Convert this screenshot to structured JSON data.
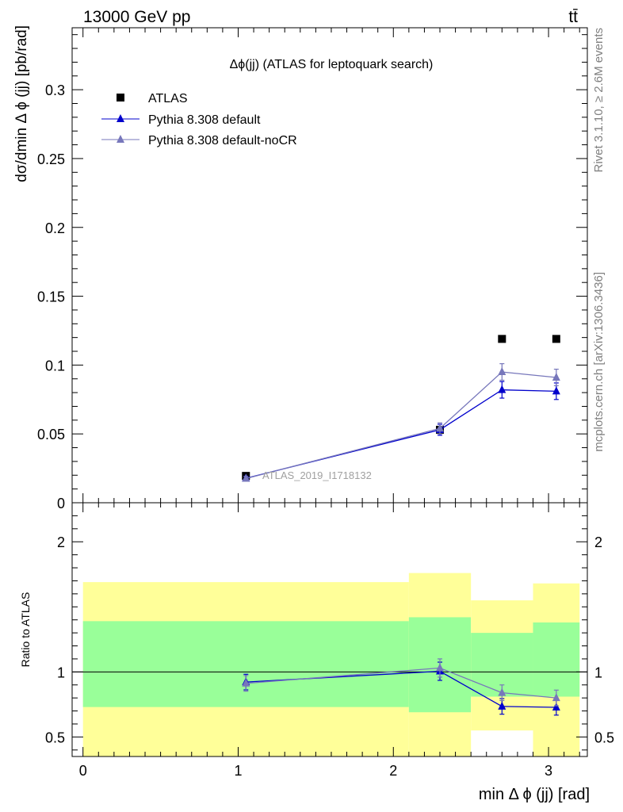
{
  "header": {
    "left": "13000 GeV pp",
    "right": "tt̄"
  },
  "side_labels": {
    "rivet": "Rivet 3.1.10, ≥ 2.6M events",
    "mcplots": "mcplots.cern.ch [arXiv:1306.3436]"
  },
  "chart_data": [
    {
      "type": "line",
      "title": "Δϕ(jj) (ATLAS for leptoquark search)",
      "xlabel": "min Δ ϕ (jj) [rad]",
      "ylabel": "dσ/dmin Δ ϕ (jj) [pb/rad]",
      "xlim": [
        -0.07,
        3.25
      ],
      "ylim": [
        0,
        0.345
      ],
      "y_ticks": [
        {
          "v": 0,
          "label": "0"
        },
        {
          "v": 0.05,
          "label": "0.05"
        },
        {
          "v": 0.1,
          "label": "0.1"
        },
        {
          "v": 0.15,
          "label": "0.15"
        },
        {
          "v": 0.2,
          "label": "0.2"
        },
        {
          "v": 0.25,
          "label": "0.25"
        },
        {
          "v": 0.3,
          "label": "0.3"
        }
      ],
      "watermark": "ATLAS_2019_I1718132",
      "legend_position": "top-left",
      "series": [
        {
          "name": "ATLAS",
          "color": "#000000",
          "marker": "square",
          "x": [
            1.05,
            2.3,
            2.7,
            3.05
          ],
          "y": [
            0.0195,
            0.053,
            0.119,
            0.119
          ]
        },
        {
          "name": "Pythia 8.308 default",
          "color": "#0000cc",
          "marker": "triangle",
          "x": [
            1.05,
            2.3,
            2.7,
            3.05
          ],
          "y": [
            0.0178,
            0.053,
            0.082,
            0.081
          ],
          "err": [
            0.0015,
            0.004,
            0.006,
            0.006
          ]
        },
        {
          "name": "Pythia 8.308 default-noCR",
          "color": "#7777bb",
          "marker": "triangle",
          "x": [
            1.05,
            2.3,
            2.7,
            3.05
          ],
          "y": [
            0.0176,
            0.054,
            0.095,
            0.091
          ],
          "err": [
            0.0015,
            0.004,
            0.006,
            0.006
          ]
        }
      ]
    },
    {
      "type": "line",
      "ylabel": "Ratio to ATLAS",
      "xlabel": "min Δ ϕ (jj) [rad]",
      "xlim": [
        -0.07,
        3.25
      ],
      "ylim": [
        0.35,
        2.3
      ],
      "y_ticks": [
        {
          "v": 0.5,
          "label": "0.5"
        },
        {
          "v": 1,
          "label": "1"
        },
        {
          "v": 2,
          "label": "2"
        }
      ],
      "x_ticks": [
        {
          "v": 0,
          "label": "0"
        },
        {
          "v": 1,
          "label": "1"
        },
        {
          "v": 2,
          "label": "2"
        },
        {
          "v": 3,
          "label": "3"
        }
      ],
      "bands": [
        {
          "x0": 0.0,
          "x1": 2.1,
          "green": [
            0.73,
            1.39
          ],
          "yellow": [
            0.35,
            1.69
          ]
        },
        {
          "x0": 2.1,
          "x1": 2.5,
          "green": [
            0.69,
            1.42
          ],
          "yellow": [
            0.35,
            1.76
          ]
        },
        {
          "x0": 2.5,
          "x1": 2.9,
          "green": [
            0.81,
            1.3
          ],
          "yellow": [
            0.55,
            1.55
          ]
        },
        {
          "x0": 2.9,
          "x1": 3.2,
          "green": [
            0.81,
            1.38
          ],
          "yellow": [
            0.35,
            1.68
          ]
        }
      ],
      "series": [
        {
          "name": "Pythia 8.308 default",
          "color": "#0000cc",
          "x": [
            1.05,
            2.3,
            2.7,
            3.05
          ],
          "y": [
            0.922,
            1.005,
            0.735,
            0.728
          ],
          "err": [
            0.06,
            0.07,
            0.06,
            0.06
          ]
        },
        {
          "name": "Pythia 8.308 default-noCR",
          "color": "#7777bb",
          "x": [
            1.05,
            2.3,
            2.7,
            3.05
          ],
          "y": [
            0.912,
            1.03,
            0.84,
            0.8
          ],
          "err": [
            0.06,
            0.07,
            0.06,
            0.06
          ]
        }
      ]
    }
  ]
}
